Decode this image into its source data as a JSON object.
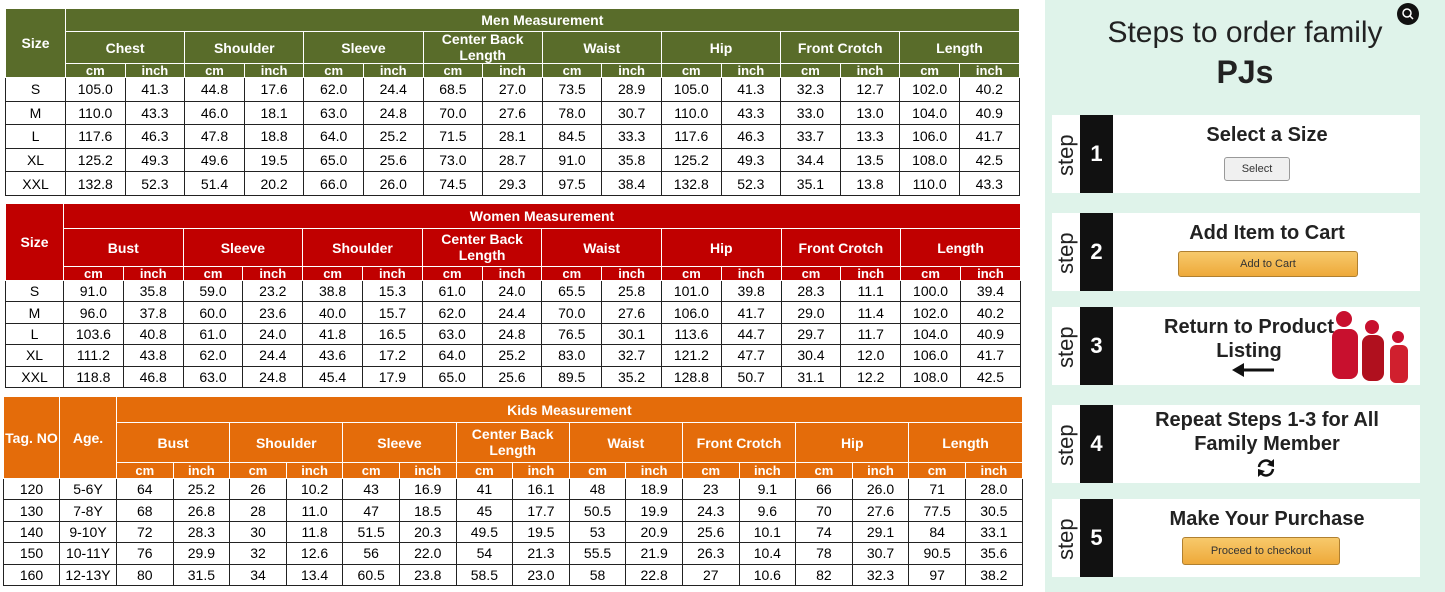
{
  "men": {
    "title": "Men Measurement",
    "first_headers": [
      "Size"
    ],
    "columns": [
      "Chest",
      "Shoulder",
      "Sleeve",
      "Center Back Length",
      "Waist",
      "Hip",
      "Front Crotch",
      "Length"
    ],
    "units": [
      "cm",
      "inch"
    ],
    "rows": [
      [
        "S",
        "105.0",
        "41.3",
        "44.8",
        "17.6",
        "62.0",
        "24.4",
        "68.5",
        "27.0",
        "73.5",
        "28.9",
        "105.0",
        "41.3",
        "32.3",
        "12.7",
        "102.0",
        "40.2"
      ],
      [
        "M",
        "110.0",
        "43.3",
        "46.0",
        "18.1",
        "63.0",
        "24.8",
        "70.0",
        "27.6",
        "78.0",
        "30.7",
        "110.0",
        "43.3",
        "33.0",
        "13.0",
        "104.0",
        "40.9"
      ],
      [
        "L",
        "117.6",
        "46.3",
        "47.8",
        "18.8",
        "64.0",
        "25.2",
        "71.5",
        "28.1",
        "84.5",
        "33.3",
        "117.6",
        "46.3",
        "33.7",
        "13.3",
        "106.0",
        "41.7"
      ],
      [
        "XL",
        "125.2",
        "49.3",
        "49.6",
        "19.5",
        "65.0",
        "25.6",
        "73.0",
        "28.7",
        "91.0",
        "35.8",
        "125.2",
        "49.3",
        "34.4",
        "13.5",
        "108.0",
        "42.5"
      ],
      [
        "XXL",
        "132.8",
        "52.3",
        "51.4",
        "20.2",
        "66.0",
        "26.0",
        "74.5",
        "29.3",
        "97.5",
        "38.4",
        "132.8",
        "52.3",
        "35.1",
        "13.8",
        "110.0",
        "43.3"
      ]
    ]
  },
  "women": {
    "title": "Women Measurement",
    "first_headers": [
      "Size"
    ],
    "columns": [
      "Bust",
      "Sleeve",
      "Shoulder",
      "Center Back Length",
      "Waist",
      "Hip",
      "Front Crotch",
      "Length"
    ],
    "units": [
      "cm",
      "inch"
    ],
    "rows": [
      [
        "S",
        "91.0",
        "35.8",
        "59.0",
        "23.2",
        "38.8",
        "15.3",
        "61.0",
        "24.0",
        "65.5",
        "25.8",
        "101.0",
        "39.8",
        "28.3",
        "11.1",
        "100.0",
        "39.4"
      ],
      [
        "M",
        "96.0",
        "37.8",
        "60.0",
        "23.6",
        "40.0",
        "15.7",
        "62.0",
        "24.4",
        "70.0",
        "27.6",
        "106.0",
        "41.7",
        "29.0",
        "11.4",
        "102.0",
        "40.2"
      ],
      [
        "L",
        "103.6",
        "40.8",
        "61.0",
        "24.0",
        "41.8",
        "16.5",
        "63.0",
        "24.8",
        "76.5",
        "30.1",
        "113.6",
        "44.7",
        "29.7",
        "11.7",
        "104.0",
        "40.9"
      ],
      [
        "XL",
        "111.2",
        "43.8",
        "62.0",
        "24.4",
        "43.6",
        "17.2",
        "64.0",
        "25.2",
        "83.0",
        "32.7",
        "121.2",
        "47.7",
        "30.4",
        "12.0",
        "106.0",
        "41.7"
      ],
      [
        "XXL",
        "118.8",
        "46.8",
        "63.0",
        "24.8",
        "45.4",
        "17.9",
        "65.0",
        "25.6",
        "89.5",
        "35.2",
        "128.8",
        "50.7",
        "31.1",
        "12.2",
        "108.0",
        "42.5"
      ]
    ]
  },
  "kids": {
    "title": "Kids Measurement",
    "first_headers": [
      "Tag. NO",
      "Age."
    ],
    "columns": [
      "Bust",
      "Shoulder",
      "Sleeve",
      "Center Back Length",
      "Waist",
      "Front Crotch",
      "Hip",
      "Length"
    ],
    "units": [
      "cm",
      "inch"
    ],
    "rows": [
      [
        "120",
        "5-6Y",
        "64",
        "25.2",
        "26",
        "10.2",
        "43",
        "16.9",
        "41",
        "16.1",
        "48",
        "18.9",
        "23",
        "9.1",
        "66",
        "26.0",
        "71",
        "28.0"
      ],
      [
        "130",
        "7-8Y",
        "68",
        "26.8",
        "28",
        "11.0",
        "47",
        "18.5",
        "45",
        "17.7",
        "50.5",
        "19.9",
        "24.3",
        "9.6",
        "70",
        "27.6",
        "77.5",
        "30.5"
      ],
      [
        "140",
        "9-10Y",
        "72",
        "28.3",
        "30",
        "11.8",
        "51.5",
        "20.3",
        "49.5",
        "19.5",
        "53",
        "20.9",
        "25.6",
        "10.1",
        "74",
        "29.1",
        "84",
        "33.1"
      ],
      [
        "150",
        "10-11Y",
        "76",
        "29.9",
        "32",
        "12.6",
        "56",
        "22.0",
        "54",
        "21.3",
        "55.5",
        "21.9",
        "26.3",
        "10.4",
        "78",
        "30.7",
        "90.5",
        "35.6"
      ],
      [
        "160",
        "12-13Y",
        "80",
        "31.5",
        "34",
        "13.4",
        "60.5",
        "23.8",
        "58.5",
        "23.0",
        "58",
        "22.8",
        "27",
        "10.6",
        "82",
        "32.3",
        "97",
        "38.2"
      ]
    ]
  },
  "steps_panel": {
    "title": "Steps to order family",
    "title_bold": "PJs",
    "step_label": "step",
    "steps": [
      {
        "number": "1",
        "text": "Select a Size",
        "button": "Select"
      },
      {
        "number": "2",
        "text": "Add Item to Cart",
        "button": "Add to Cart"
      },
      {
        "number": "3",
        "text": "Return to Product Listing"
      },
      {
        "number": "4",
        "text": "Repeat Steps 1-3 for All Family Member"
      },
      {
        "number": "5",
        "text": "Make Your Purchase",
        "button": "Proceed to checkout"
      }
    ]
  }
}
